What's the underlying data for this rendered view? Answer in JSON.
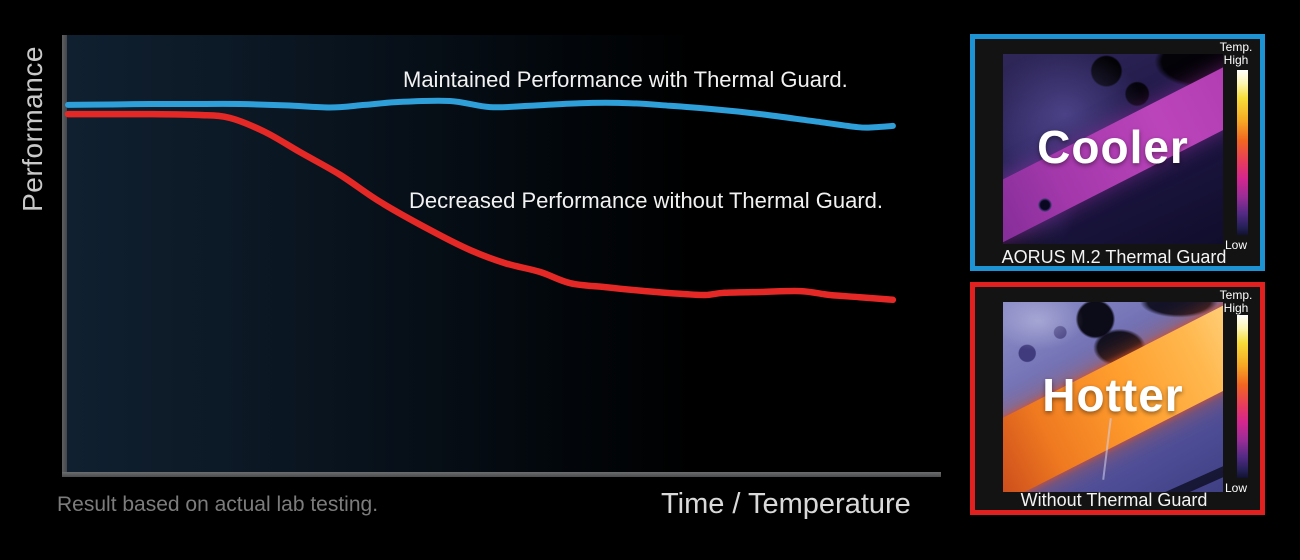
{
  "chart_data": {
    "type": "line",
    "title": "",
    "xlabel": "Time / Temperature",
    "ylabel": "Performance",
    "footnote": "Result based on actual lab testing.",
    "xlim": [
      0,
      100
    ],
    "ylim": [
      0,
      100
    ],
    "grid": false,
    "legend": "inline annotations above each line",
    "axis_color": "#58595b",
    "series": [
      {
        "name": "Maintained Performance with Thermal Guard.",
        "color": "#2E9FD9",
        "points": [
          [
            0,
            84.0
          ],
          [
            5,
            84.1
          ],
          [
            9.4,
            84.2
          ],
          [
            14,
            84.2
          ],
          [
            19.7,
            84.2
          ],
          [
            25,
            83.9
          ],
          [
            30,
            83.4
          ],
          [
            34,
            84.0
          ],
          [
            38.1,
            84.7
          ],
          [
            43.8,
            84.9
          ],
          [
            48.4,
            83.5
          ],
          [
            53,
            83.8
          ],
          [
            58.7,
            84.4
          ],
          [
            64.4,
            84.4
          ],
          [
            69,
            83.8
          ],
          [
            73.6,
            83.1
          ],
          [
            79.4,
            81.9
          ],
          [
            85.1,
            80.4
          ],
          [
            90.6,
            78.9
          ],
          [
            92.5,
            78.9
          ],
          [
            94.6,
            79.2
          ]
        ]
      },
      {
        "name": "Decreased Performance without Thermal Guard.",
        "color": "#E42825",
        "points": [
          [
            0,
            81.9
          ],
          [
            5,
            81.9
          ],
          [
            9.4,
            81.9
          ],
          [
            15.1,
            81.7
          ],
          [
            18.6,
            81.0
          ],
          [
            22.6,
            77.8
          ],
          [
            26.6,
            73.2
          ],
          [
            31.2,
            68.0
          ],
          [
            35.8,
            61.8
          ],
          [
            41.5,
            55.4
          ],
          [
            46.1,
            50.8
          ],
          [
            50.1,
            47.8
          ],
          [
            54.1,
            45.8
          ],
          [
            57.6,
            43.2
          ],
          [
            61.6,
            42.3
          ],
          [
            66.2,
            41.4
          ],
          [
            70.8,
            40.7
          ],
          [
            73.1,
            40.5
          ],
          [
            75.3,
            41.0
          ],
          [
            79.4,
            41.2
          ],
          [
            84,
            41.4
          ],
          [
            87.4,
            40.5
          ],
          [
            90.8,
            40.0
          ],
          [
            94.6,
            39.4
          ]
        ]
      }
    ]
  },
  "panels": [
    {
      "border_color": "#1E93D4",
      "image_label": "Cooler",
      "caption": "AORUS M.2 Thermal Guard",
      "scale": {
        "title": "Temp.",
        "high": "High",
        "low": "Low"
      }
    },
    {
      "border_color": "#E02120",
      "image_label": "Hotter",
      "caption": "Without Thermal Guard",
      "scale": {
        "title": "Temp.",
        "high": "High",
        "low": "Low"
      }
    }
  ]
}
